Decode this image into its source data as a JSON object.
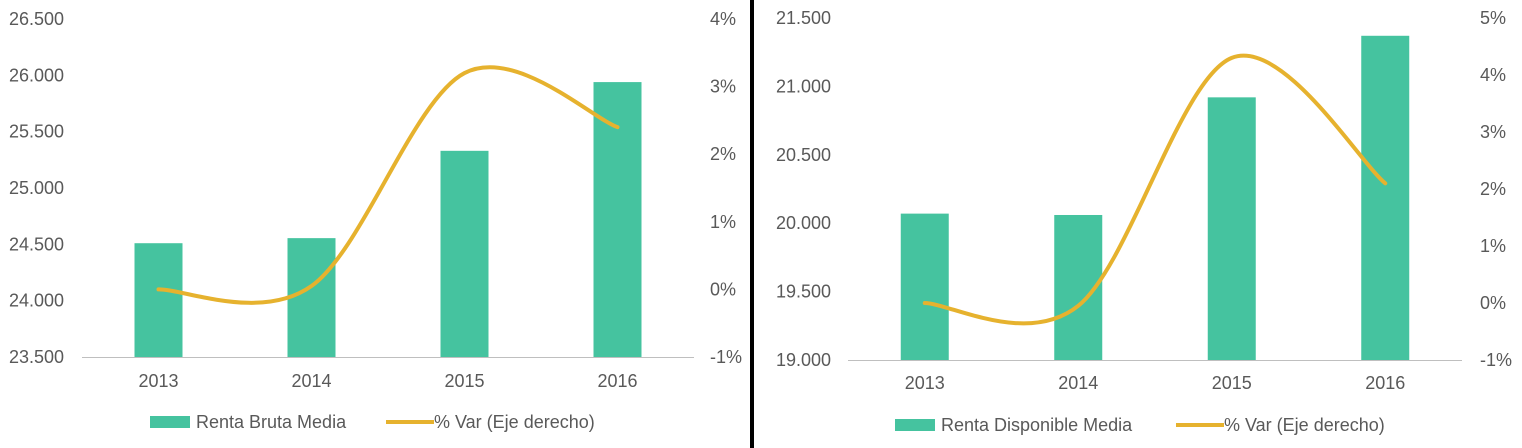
{
  "colors": {
    "bar": "#45c39f",
    "line": "#e6b22e",
    "axis": "#bfbfbf",
    "text": "#595959",
    "divider": "#000000"
  },
  "chart_data": [
    {
      "type": "bar",
      "categories": [
        "2013",
        "2014",
        "2015",
        "2016"
      ],
      "series": [
        {
          "name": "Renta Bruta Media",
          "kind": "bar",
          "axis": "left",
          "values": [
            24510,
            24555,
            25330,
            25940
          ]
        },
        {
          "name": "% Var (Eje derecho)",
          "kind": "line",
          "axis": "right",
          "values": [
            0.0,
            0.05,
            3.2,
            2.4
          ]
        }
      ],
      "ylim_left": [
        23500,
        26500
      ],
      "yticks_left": [
        23500,
        24000,
        24500,
        25000,
        25500,
        26000,
        26500
      ],
      "ytick_labels_left": [
        "23.500",
        "24.000",
        "24.500",
        "25.000",
        "25.500",
        "26.000",
        "26.500"
      ],
      "ylim_right": [
        -1,
        4
      ],
      "yticks_right": [
        -1,
        0,
        1,
        2,
        3,
        4
      ],
      "ytick_labels_right": [
        "-1%",
        "0%",
        "1%",
        "2%",
        "3%",
        "4%"
      ],
      "legend": [
        "Renta Bruta Media",
        "% Var (Eje derecho)"
      ],
      "legend_position": "bottom",
      "grid": false
    },
    {
      "type": "bar",
      "categories": [
        "2013",
        "2014",
        "2015",
        "2016"
      ],
      "series": [
        {
          "name": "Renta Disponible Media",
          "kind": "bar",
          "axis": "left",
          "values": [
            20070,
            20060,
            20920,
            21370
          ]
        },
        {
          "name": "% Var (Eje derecho)",
          "kind": "line",
          "axis": "right",
          "values": [
            0.0,
            -0.05,
            4.3,
            2.1
          ]
        }
      ],
      "ylim_left": [
        19000,
        21500
      ],
      "yticks_left": [
        19000,
        19500,
        20000,
        20500,
        21000,
        21500
      ],
      "ytick_labels_left": [
        "19.000",
        "19.500",
        "20.000",
        "20.500",
        "21.000",
        "21.500"
      ],
      "ylim_right": [
        -1,
        5
      ],
      "yticks_right": [
        -1,
        0,
        1,
        2,
        3,
        4,
        5
      ],
      "ytick_labels_right": [
        "-1%",
        "0%",
        "1%",
        "2%",
        "3%",
        "4%",
        "5%"
      ],
      "legend": [
        "Renta Disponible Media",
        "% Var (Eje derecho)"
      ],
      "legend_position": "bottom",
      "grid": false
    }
  ]
}
